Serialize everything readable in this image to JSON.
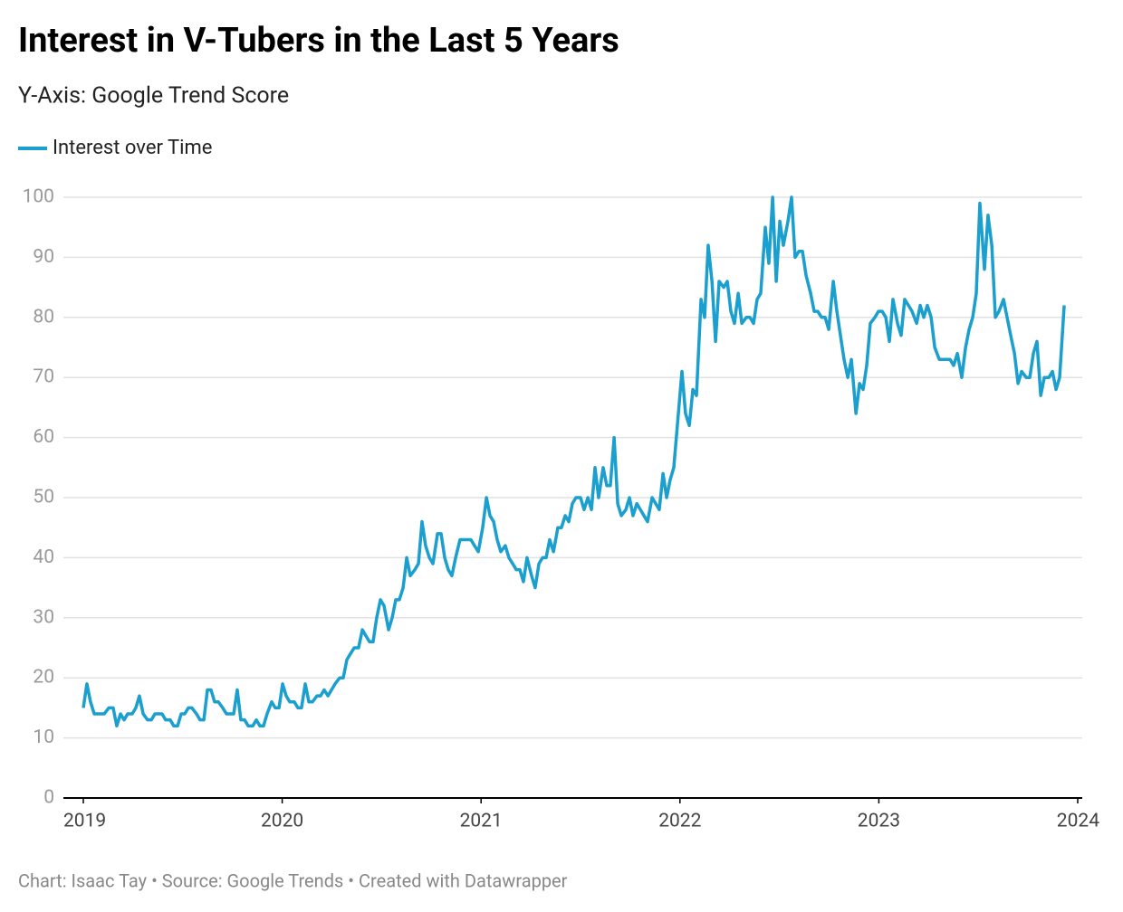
{
  "chart_data": {
    "type": "line",
    "title": "Interest in V-Tubers in the Last 5 Years",
    "subtitle": "Y-Axis: Google Trend Score",
    "footer": "Chart: Isaac Tay • Source: Google Trends • Created with Datawrapper",
    "legend": "top-left",
    "grid": true,
    "xlim": [
      2019,
      2024
    ],
    "xticks": [
      2019,
      2020,
      2021,
      2022,
      2023,
      2024
    ],
    "ylim": [
      0,
      100
    ],
    "yticks": [
      0,
      10,
      20,
      30,
      40,
      50,
      60,
      70,
      80,
      90,
      100
    ],
    "x": [
      2019.0,
      2019.018,
      2019.036,
      2019.055,
      2019.105,
      2019.128,
      2019.15,
      2019.168,
      2019.187,
      2019.205,
      2019.223,
      2019.246,
      2019.264,
      2019.282,
      2019.301,
      2019.323,
      2019.342,
      2019.36,
      2019.396,
      2019.414,
      2019.437,
      2019.455,
      2019.474,
      2019.492,
      2019.51,
      2019.528,
      2019.546,
      2019.569,
      2019.587,
      2019.606,
      2019.624,
      2019.642,
      2019.66,
      2019.679,
      2019.701,
      2019.72,
      2019.756,
      2019.774,
      2019.792,
      2019.811,
      2019.829,
      2019.852,
      2019.87,
      2019.888,
      2019.906,
      2019.924,
      2019.947,
      2019.965,
      2019.984,
      2020.002,
      2020.02,
      2020.038,
      2020.061,
      2020.079,
      2020.097,
      2020.116,
      2020.134,
      2020.152,
      2020.175,
      2020.193,
      2020.211,
      2020.23,
      2020.248,
      2020.266,
      2020.289,
      2020.307,
      2020.325,
      2020.343,
      2020.362,
      2020.384,
      2020.403,
      2020.421,
      2020.439,
      2020.457,
      2020.475,
      2020.494,
      2020.512,
      2020.535,
      2020.553,
      2020.571,
      2020.589,
      2020.608,
      2020.626,
      2020.644,
      2020.667,
      2020.685,
      2020.703,
      2020.721,
      2020.74,
      2020.758,
      2020.781,
      2020.799,
      2020.817,
      2020.835,
      2020.853,
      2020.872,
      2020.894,
      2020.913,
      2020.949,
      2020.967,
      2020.986,
      2021.008,
      2021.027,
      2021.045,
      2021.063,
      2021.081,
      2021.099,
      2021.122,
      2021.14,
      2021.159,
      2021.177,
      2021.195,
      2021.213,
      2021.231,
      2021.254,
      2021.272,
      2021.291,
      2021.309,
      2021.327,
      2021.345,
      2021.364,
      2021.386,
      2021.404,
      2021.423,
      2021.441,
      2021.459,
      2021.477,
      2021.5,
      2021.518,
      2021.537,
      2021.555,
      2021.573,
      2021.591,
      2021.614,
      2021.632,
      2021.65,
      2021.669,
      2021.687,
      2021.705,
      2021.728,
      2021.746,
      2021.764,
      2021.783,
      2021.801,
      2021.819,
      2021.837,
      2021.86,
      2021.878,
      2021.896,
      2021.915,
      2021.933,
      2021.951,
      2021.969,
      2021.992,
      2022.01,
      2022.028,
      2022.047,
      2022.065,
      2022.083,
      2022.106,
      2022.124,
      2022.142,
      2022.161,
      2022.179,
      2022.197,
      2022.22,
      2022.238,
      2022.256,
      2022.274,
      2022.293,
      2022.311,
      2022.334,
      2022.352,
      2022.37,
      2022.388,
      2022.406,
      2022.429,
      2022.447,
      2022.466,
      2022.484,
      2022.502,
      2022.52,
      2022.543,
      2022.561,
      2022.579,
      2022.598,
      2022.616,
      2022.634,
      2022.657,
      2022.675,
      2022.693,
      2022.712,
      2022.73,
      2022.748,
      2022.771,
      2022.789,
      2022.807,
      2022.825,
      2022.844,
      2022.862,
      2022.885,
      2022.903,
      2022.921,
      2022.939,
      2022.957,
      2022.98,
      2022.998,
      2023.017,
      2023.035,
      2023.053,
      2023.071,
      2023.094,
      2023.112,
      2023.13,
      2023.149,
      2023.167,
      2023.19,
      2023.208,
      2023.226,
      2023.244,
      2023.263,
      2023.281,
      2023.304,
      2023.322,
      2023.358,
      2023.376,
      2023.395,
      2023.417,
      2023.436,
      2023.454,
      2023.472,
      2023.49,
      2023.508,
      2023.531,
      2023.549,
      2023.568,
      2023.586,
      2023.604,
      2023.627,
      2023.645,
      2023.663,
      2023.682,
      2023.7,
      2023.718,
      2023.741,
      2023.759,
      2023.777,
      2023.795,
      2023.814,
      2023.832,
      2023.855,
      2023.873,
      2023.891,
      2023.909,
      2023.932
    ],
    "series": [
      {
        "name": "Interest over Time",
        "color": "#1a9fce",
        "values": [
          15,
          19,
          16,
          14,
          14,
          15,
          15,
          12,
          14,
          13,
          14,
          14,
          15,
          17,
          14,
          13,
          13,
          14,
          14,
          13,
          13,
          12,
          12,
          14,
          14,
          15,
          15,
          14,
          13,
          13,
          18,
          18,
          16,
          16,
          15,
          14,
          14,
          18,
          13,
          13,
          12,
          12,
          13,
          12,
          12,
          14,
          16,
          15,
          15,
          19,
          17,
          16,
          16,
          15,
          15,
          19,
          16,
          16,
          17,
          17,
          18,
          17,
          18,
          19,
          20,
          20,
          23,
          24,
          25,
          25,
          28,
          27,
          26,
          26,
          30,
          33,
          32,
          28,
          30,
          33,
          33,
          35,
          40,
          37,
          38,
          39,
          46,
          42,
          40,
          39,
          44,
          44,
          40,
          38,
          37,
          40,
          43,
          43,
          43,
          42,
          41,
          45,
          50,
          47,
          46,
          43,
          41,
          42,
          40,
          39,
          38,
          38,
          36,
          40,
          37,
          35,
          39,
          40,
          40,
          43,
          41,
          45,
          45,
          47,
          46,
          49,
          50,
          50,
          48,
          50,
          48,
          55,
          50,
          55,
          52,
          52,
          60,
          49,
          47,
          48,
          50,
          47,
          49,
          48,
          47,
          46,
          50,
          49,
          48,
          54,
          50,
          53,
          55,
          64,
          71,
          64,
          62,
          68,
          67,
          83,
          80,
          92,
          86,
          76,
          86,
          85,
          86,
          81,
          79,
          84,
          79,
          80,
          80,
          79,
          83,
          84,
          95,
          89,
          100,
          86,
          96,
          92,
          96,
          100,
          90,
          91,
          91,
          87,
          84,
          81,
          81,
          80,
          80,
          78,
          86,
          81,
          77,
          73,
          70,
          73,
          64,
          69,
          68,
          72,
          79,
          80,
          81,
          81,
          80,
          76,
          83,
          79,
          77,
          83,
          82,
          81,
          79,
          82,
          80,
          82,
          80,
          75,
          73,
          73,
          73,
          72,
          74,
          70,
          75,
          78,
          80,
          84,
          99,
          88,
          97,
          92,
          80,
          81,
          83,
          80,
          77,
          74,
          69,
          71,
          70,
          70,
          74,
          76,
          67,
          70,
          70,
          71,
          68,
          70,
          82
        ]
      }
    ]
  }
}
